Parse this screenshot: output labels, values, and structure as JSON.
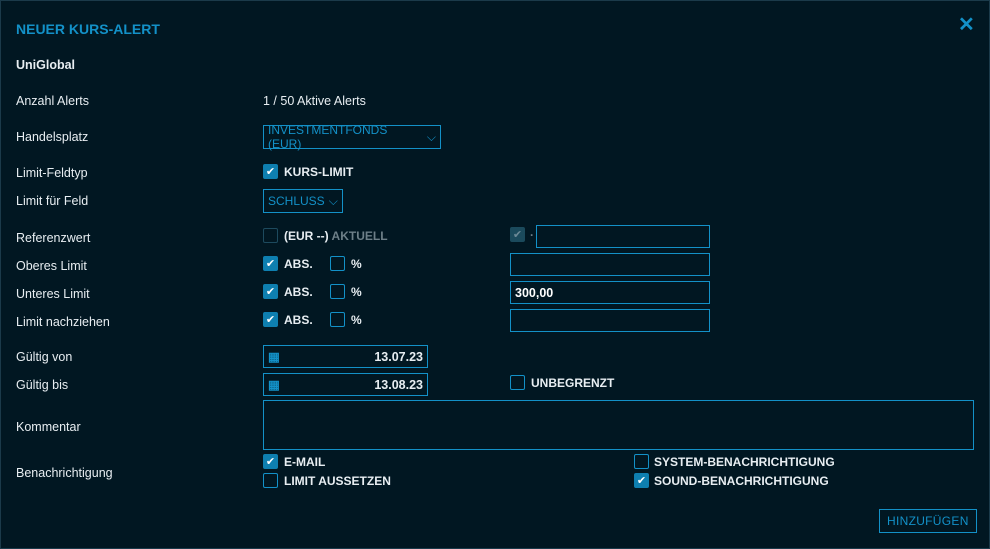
{
  "dialog": {
    "title": "NEUER KURS-ALERT",
    "close_icon": "close-icon",
    "instrument": "UniGlobal"
  },
  "colors": {
    "background": "#011722",
    "accent": "#1391c8"
  },
  "labels": {
    "anzahl": "Anzahl Alerts",
    "handelsplatz": "Handelsplatz",
    "feldtyp": "Limit-Feldtyp",
    "limit_feld": "Limit für Feld",
    "referenz": "Referenzwert",
    "oberes": "Oberes Limit",
    "unteres": "Unteres Limit",
    "nachziehen": "Limit nachziehen",
    "von": "Gültig von",
    "bis": "Gültig bis",
    "kommentar": "Kommentar",
    "benachrichtigung": "Benachrichtigung"
  },
  "values": {
    "anzahl": "1 / 50 Aktive Alerts",
    "handelsplatz": "INVESTMENTFONDS (EUR)",
    "kurs_limit": "KURS-LIMIT",
    "limit_feld": "SCHLUSS",
    "ref_currency": "(EUR --)",
    "ref_aktuell": "AKTUELL",
    "ref_dot": "·",
    "ref_value": "",
    "abs": "ABS.",
    "pct": "%",
    "oberes_value": "",
    "unteres_value": "300,00",
    "nachziehen_value": "",
    "von": "13.07.23",
    "bis": "13.08.23",
    "unbegrenzt": "UNBEGRENZT",
    "kommentar": ""
  },
  "notifications": {
    "email": "E-MAIL",
    "limit_aussetzen": "LIMIT AUSSETZEN",
    "system": "SYSTEM-BENACHRICHTIGUNG",
    "sound": "SOUND-BENACHRICHTIGUNG"
  },
  "checkbox_states": {
    "kurs_limit": true,
    "referenz": false,
    "ref_aktuell": true,
    "oberes_abs": true,
    "oberes_pct": false,
    "unteres_abs": true,
    "unteres_pct": false,
    "nachziehen_abs": true,
    "nachziehen_pct": false,
    "unbegrenzt": false,
    "email": true,
    "limit_aussetzen": false,
    "system": false,
    "sound": true
  },
  "footer": {
    "add_label": "HINZUFÜGEN"
  }
}
